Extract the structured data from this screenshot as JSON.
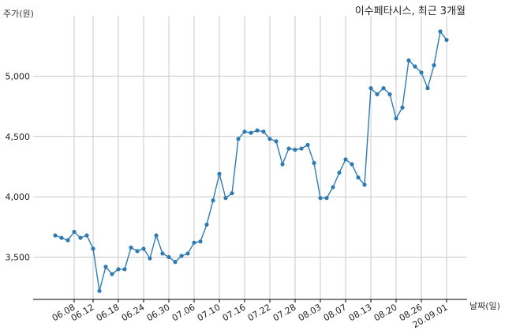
{
  "chart_data": {
    "type": "line",
    "title": "이수페타시스, 최근 3개월",
    "xlabel": "날짜(일)",
    "ylabel": "주가(원)",
    "ylim": [
      3150,
      5500
    ],
    "yticks": [
      3500,
      4000,
      4500,
      5000
    ],
    "ytick_labels": [
      "3,500",
      "4,000",
      "4,500",
      "5,000"
    ],
    "grid": true,
    "color": "#2e7bb4",
    "x_tick_labels": [
      "06.08",
      "06.12",
      "06.18",
      "06.24",
      "06.30",
      "07.06",
      "07.10",
      "07.16",
      "07.22",
      "07.28",
      "08.03",
      "08.07",
      "08.13",
      "08.20",
      "08.26",
      "20.09.01"
    ],
    "x_tick_indices": [
      3,
      6,
      10,
      14,
      18,
      22,
      26,
      30,
      34,
      38,
      42,
      46,
      50,
      54,
      58,
      62
    ],
    "series": [
      {
        "values": [
          3680,
          3660,
          3640,
          3710,
          3660,
          3680,
          3570,
          3220,
          3420,
          3360,
          3400,
          3400,
          3580,
          3550,
          3570,
          3490,
          3680,
          3530,
          3500,
          3460,
          3510,
          3530,
          3620,
          3630,
          3770,
          3970,
          4190,
          3990,
          4030,
          4480,
          4540,
          4530,
          4550,
          4540,
          4480,
          4460,
          4270,
          4400,
          4390,
          4400,
          4430,
          4280,
          3990,
          3990,
          4080,
          4200,
          4310,
          4270,
          4160,
          4100,
          4900,
          4850,
          4900,
          4850,
          4650,
          4740,
          5130,
          5080,
          5030,
          4900,
          5090,
          5370,
          5300
        ]
      }
    ]
  }
}
